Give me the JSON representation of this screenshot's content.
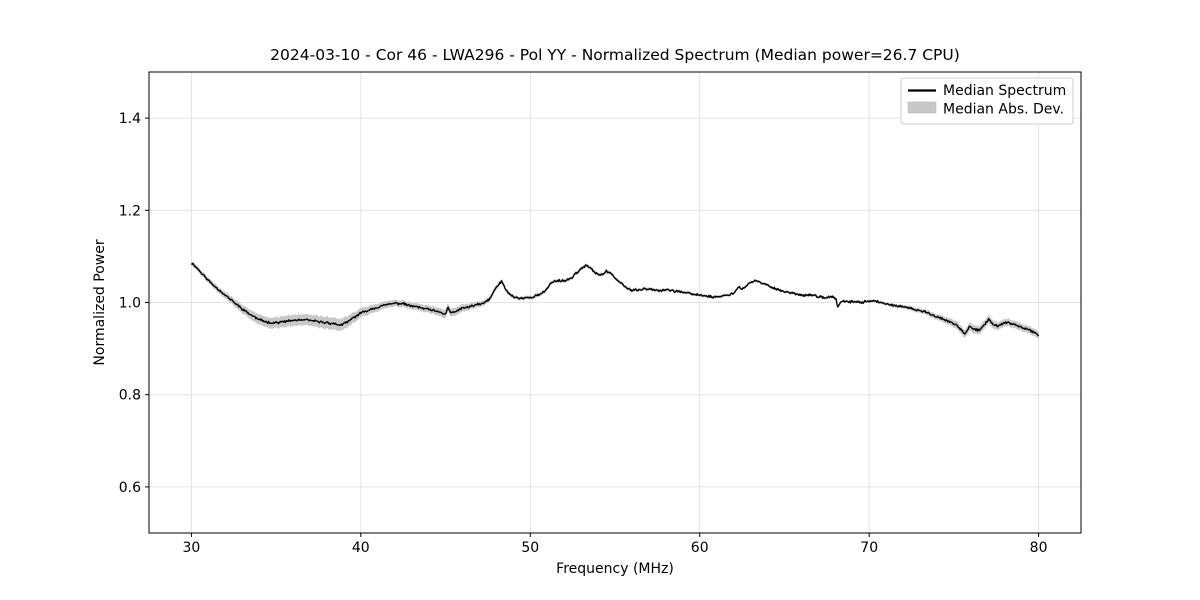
{
  "chart_data": {
    "type": "line",
    "title": "2024-03-10 - Cor 46 - LWA296 - Pol YY - Normalized Spectrum (Median power=26.7 CPU)",
    "xlabel": "Frequency (MHz)",
    "ylabel": "Normalized Power",
    "xlim": [
      27.5,
      82.5
    ],
    "ylim": [
      0.5,
      1.5
    ],
    "xticks": [
      30,
      40,
      50,
      60,
      70,
      80
    ],
    "yticks": [
      0.6,
      0.8,
      1.0,
      1.2,
      1.4
    ],
    "grid": true,
    "grid_color": "#e4e4e4",
    "spine_color": "#000000",
    "background_color": "#ffffff",
    "legend": {
      "position": "upper right",
      "border_color": "#cccccc",
      "entries": [
        {
          "label": "Median Spectrum",
          "type": "line",
          "color": "#000000"
        },
        {
          "label": "Median Abs. Dev.",
          "type": "patch",
          "color": "#c8c8c8"
        }
      ]
    },
    "series": [
      {
        "name": "Median Spectrum",
        "type": "line",
        "color": "#000000",
        "points": [
          [
            30.0,
            1.086
          ],
          [
            30.2,
            1.08
          ],
          [
            30.4,
            1.072
          ],
          [
            30.6,
            1.064
          ],
          [
            30.8,
            1.056
          ],
          [
            31.0,
            1.048
          ],
          [
            31.3,
            1.038
          ],
          [
            31.6,
            1.028
          ],
          [
            32.0,
            1.016
          ],
          [
            32.4,
            1.004
          ],
          [
            32.8,
            0.992
          ],
          [
            33.2,
            0.981
          ],
          [
            33.6,
            0.971
          ],
          [
            34.0,
            0.963
          ],
          [
            34.4,
            0.958
          ],
          [
            34.8,
            0.956
          ],
          [
            35.2,
            0.957
          ],
          [
            35.6,
            0.959
          ],
          [
            36.0,
            0.961
          ],
          [
            36.4,
            0.962
          ],
          [
            36.8,
            0.962
          ],
          [
            37.2,
            0.96
          ],
          [
            37.6,
            0.958
          ],
          [
            38.0,
            0.956
          ],
          [
            38.4,
            0.954
          ],
          [
            38.8,
            0.951
          ],
          [
            39.2,
            0.957
          ],
          [
            39.6,
            0.968
          ],
          [
            40.0,
            0.977
          ],
          [
            40.4,
            0.983
          ],
          [
            40.8,
            0.988
          ],
          [
            41.2,
            0.992
          ],
          [
            41.6,
            0.996
          ],
          [
            42.0,
            0.998
          ],
          [
            42.4,
            0.998
          ],
          [
            42.8,
            0.994
          ],
          [
            43.2,
            0.991
          ],
          [
            43.6,
            0.988
          ],
          [
            44.0,
            0.985
          ],
          [
            44.4,
            0.981
          ],
          [
            44.8,
            0.977
          ],
          [
            45.0,
            0.975
          ],
          [
            45.15,
            0.99
          ],
          [
            45.3,
            0.977
          ],
          [
            45.6,
            0.981
          ],
          [
            46.0,
            0.987
          ],
          [
            46.4,
            0.991
          ],
          [
            46.8,
            0.995
          ],
          [
            47.2,
            0.997
          ],
          [
            47.6,
            1.008
          ],
          [
            48.0,
            1.033
          ],
          [
            48.3,
            1.046
          ],
          [
            48.6,
            1.025
          ],
          [
            49.0,
            1.012
          ],
          [
            49.4,
            1.009
          ],
          [
            49.8,
            1.01
          ],
          [
            50.2,
            1.013
          ],
          [
            50.6,
            1.018
          ],
          [
            50.9,
            1.025
          ],
          [
            51.2,
            1.042
          ],
          [
            51.6,
            1.048
          ],
          [
            52.0,
            1.047
          ],
          [
            52.4,
            1.052
          ],
          [
            52.8,
            1.067
          ],
          [
            53.1,
            1.076
          ],
          [
            53.35,
            1.08
          ],
          [
            53.6,
            1.072
          ],
          [
            53.9,
            1.063
          ],
          [
            54.2,
            1.06
          ],
          [
            54.5,
            1.067
          ],
          [
            54.8,
            1.063
          ],
          [
            55.1,
            1.049
          ],
          [
            55.4,
            1.042
          ],
          [
            55.7,
            1.031
          ],
          [
            56.0,
            1.026
          ],
          [
            56.4,
            1.027
          ],
          [
            56.8,
            1.03
          ],
          [
            57.2,
            1.029
          ],
          [
            57.6,
            1.026
          ],
          [
            58.0,
            1.028
          ],
          [
            58.4,
            1.025
          ],
          [
            58.8,
            1.024
          ],
          [
            59.2,
            1.021
          ],
          [
            59.6,
            1.018
          ],
          [
            60.0,
            1.016
          ],
          [
            60.4,
            1.014
          ],
          [
            60.8,
            1.012
          ],
          [
            61.2,
            1.013
          ],
          [
            61.6,
            1.016
          ],
          [
            62.0,
            1.02
          ],
          [
            62.3,
            1.034
          ],
          [
            62.5,
            1.028
          ],
          [
            62.8,
            1.038
          ],
          [
            63.2,
            1.047
          ],
          [
            63.5,
            1.045
          ],
          [
            63.8,
            1.04
          ],
          [
            64.2,
            1.034
          ],
          [
            64.6,
            1.028
          ],
          [
            65.0,
            1.024
          ],
          [
            65.4,
            1.021
          ],
          [
            65.8,
            1.018
          ],
          [
            66.2,
            1.015
          ],
          [
            66.6,
            1.017
          ],
          [
            67.0,
            1.012
          ],
          [
            67.4,
            1.01
          ],
          [
            67.8,
            1.013
          ],
          [
            68.05,
            1.007
          ],
          [
            68.15,
            0.99
          ],
          [
            68.35,
            1.002
          ],
          [
            68.7,
            1.001
          ],
          [
            69.1,
            1.002
          ],
          [
            69.5,
            1.0
          ],
          [
            69.9,
            1.003
          ],
          [
            70.3,
            1.004
          ],
          [
            70.7,
            0.999
          ],
          [
            71.1,
            0.996
          ],
          [
            71.5,
            0.994
          ],
          [
            71.9,
            0.991
          ],
          [
            72.3,
            0.988
          ],
          [
            72.7,
            0.985
          ],
          [
            73.1,
            0.981
          ],
          [
            73.5,
            0.977
          ],
          [
            73.9,
            0.971
          ],
          [
            74.3,
            0.965
          ],
          [
            74.7,
            0.959
          ],
          [
            75.1,
            0.952
          ],
          [
            75.4,
            0.942
          ],
          [
            75.65,
            0.931
          ],
          [
            75.9,
            0.947
          ],
          [
            76.2,
            0.943
          ],
          [
            76.5,
            0.94
          ],
          [
            76.8,
            0.951
          ],
          [
            77.05,
            0.964
          ],
          [
            77.3,
            0.953
          ],
          [
            77.6,
            0.948
          ],
          [
            77.9,
            0.955
          ],
          [
            78.2,
            0.956
          ],
          [
            78.5,
            0.952
          ],
          [
            78.8,
            0.949
          ],
          [
            79.1,
            0.945
          ],
          [
            79.4,
            0.941
          ],
          [
            79.7,
            0.936
          ],
          [
            80.0,
            0.928
          ]
        ]
      },
      {
        "name": "Median Abs. Dev.",
        "type": "band",
        "color": "#c8c8c8",
        "center_series": "Median Spectrum",
        "points": [
          [
            30,
            0.005
          ],
          [
            31,
            0.006
          ],
          [
            32,
            0.007
          ],
          [
            33,
            0.009
          ],
          [
            34,
            0.011
          ],
          [
            35,
            0.012
          ],
          [
            36,
            0.012
          ],
          [
            37,
            0.012
          ],
          [
            38,
            0.013
          ],
          [
            39,
            0.013
          ],
          [
            40,
            0.01
          ],
          [
            41,
            0.008
          ],
          [
            42,
            0.007
          ],
          [
            43,
            0.007
          ],
          [
            44,
            0.008
          ],
          [
            45,
            0.009
          ],
          [
            46,
            0.008
          ],
          [
            47,
            0.006
          ],
          [
            48,
            0.005
          ],
          [
            49,
            0.004
          ],
          [
            50,
            0.004
          ],
          [
            52,
            0.004
          ],
          [
            54,
            0.004
          ],
          [
            56,
            0.0035
          ],
          [
            58,
            0.0035
          ],
          [
            60,
            0.003
          ],
          [
            62,
            0.003
          ],
          [
            64,
            0.003
          ],
          [
            66,
            0.003
          ],
          [
            68,
            0.003
          ],
          [
            70,
            0.003
          ],
          [
            72,
            0.004
          ],
          [
            73,
            0.005
          ],
          [
            74,
            0.006
          ],
          [
            75,
            0.008
          ],
          [
            76,
            0.009
          ],
          [
            77,
            0.009
          ],
          [
            78,
            0.008
          ],
          [
            79,
            0.008
          ],
          [
            80,
            0.008
          ]
        ]
      }
    ],
    "render_noise": {
      "amplitude": 0.003,
      "step_mhz": 0.05,
      "seed": 11
    }
  }
}
